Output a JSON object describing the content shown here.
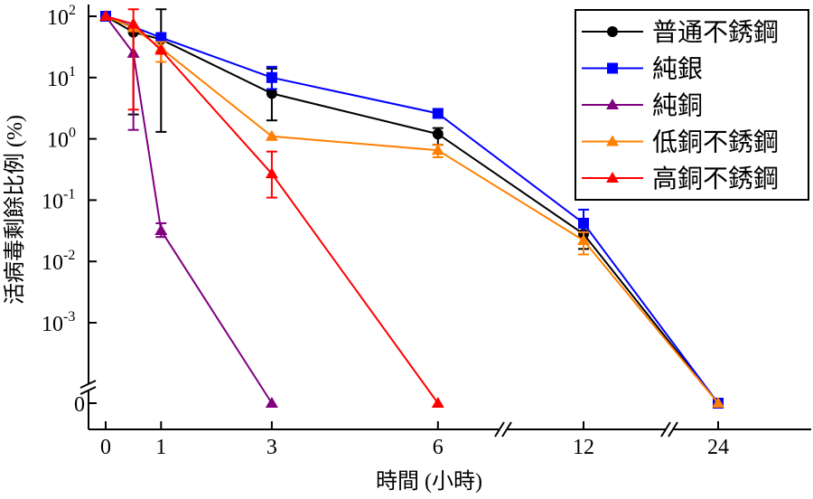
{
  "chart_data": {
    "type": "line",
    "title": "",
    "xlabel": "時間 (小時)",
    "ylabel": "活病毒剩餘比例 (%)",
    "yscale": "log with broken axis to 0",
    "x_ticks": [
      0,
      1,
      3,
      6,
      12,
      24
    ],
    "x_tick_labels": [
      "0",
      "1",
      "3",
      "6",
      "12",
      "24"
    ],
    "x_axis_breaks": [
      "6-12",
      "12-24"
    ],
    "y_tick_labels": [
      {
        "base": "10",
        "exp": "2"
      },
      {
        "base": "10",
        "exp": "1"
      },
      {
        "base": "10",
        "exp": "0"
      },
      {
        "base": "10",
        "exp": "-1"
      },
      {
        "base": "10",
        "exp": "-2"
      },
      {
        "base": "10",
        "exp": "-3"
      },
      {
        "base": "0",
        "exp": ""
      }
    ],
    "y_tick_values": [
      100,
      10,
      1,
      0.1,
      0.01,
      0.001,
      0
    ],
    "legend_position": "top-right",
    "grid": false,
    "series": [
      {
        "name": "普通不銹鋼",
        "color": "#000000",
        "marker": "circle",
        "x": [
          0,
          0.5,
          1,
          3,
          6,
          12,
          24
        ],
        "y": [
          100,
          55,
          42,
          5.5,
          1.2,
          0.028,
          0
        ],
        "err": [
          null,
          [
            2.5,
            null
          ],
          [
            1.3,
            130
          ],
          [
            2.0,
            14
          ],
          [
            0.8,
            1.5
          ],
          [
            0.016,
            0.04
          ],
          null
        ]
      },
      {
        "name": "純銀",
        "color": "#0000FF",
        "marker": "square",
        "x": [
          0,
          1,
          3,
          6,
          12,
          24
        ],
        "y": [
          100,
          45,
          10,
          2.6,
          0.042,
          0
        ],
        "err": [
          null,
          null,
          [
            6.5,
            15
          ],
          [
            2.2,
            3.0
          ],
          [
            0.03,
            0.07
          ],
          null
        ]
      },
      {
        "name": "純銅",
        "color": "#800080",
        "marker": "triangle",
        "x": [
          0,
          0.5,
          1,
          3
        ],
        "y": [
          100,
          25,
          0.032,
          0
        ],
        "err": [
          null,
          [
            1.4,
            null
          ],
          [
            0.025,
            0.042
          ],
          null
        ]
      },
      {
        "name": "低銅不銹鋼",
        "color": "#FF8000",
        "marker": "triangle",
        "x": [
          0,
          0.5,
          1,
          3,
          6,
          12,
          24
        ],
        "y": [
          100,
          65,
          30,
          1.1,
          0.65,
          0.022,
          0
        ],
        "err": [
          null,
          null,
          [
            18,
            38
          ],
          null,
          [
            0.5,
            0.8
          ],
          [
            0.013,
            0.03
          ],
          null
        ]
      },
      {
        "name": "高銅不銹鋼",
        "color": "#FF0000",
        "marker": "triangle",
        "x": [
          0,
          0.5,
          1,
          3,
          6
        ],
        "y": [
          100,
          75,
          28,
          0.27,
          0
        ],
        "err": [
          null,
          [
            3.0,
            130
          ],
          null,
          [
            0.11,
            0.62
          ],
          null
        ]
      }
    ]
  }
}
